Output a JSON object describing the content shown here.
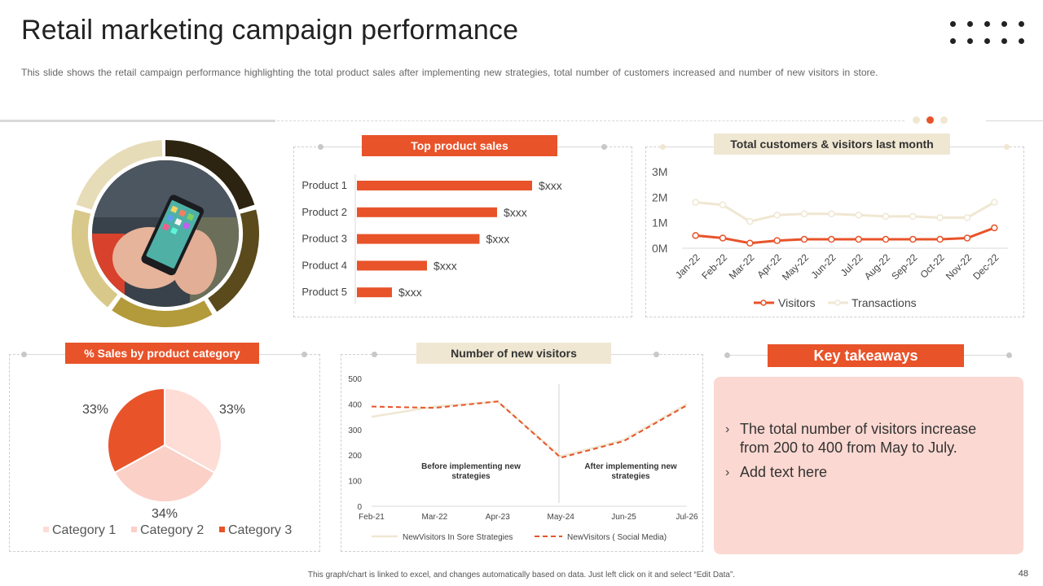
{
  "header": {
    "title": "Retail marketing campaign performance",
    "subtitle": "This slide shows the retail campaign performance  highlighting the total product sales after implementing new strategies, total number of customers increased  and number  of new visitors in store."
  },
  "colors": {
    "orange": "#e8532a",
    "beige": "#f0e7d2",
    "light_pink": "#fbd8d1",
    "dark_gold": "#5a4a1c",
    "gold": "#b39a3a",
    "pale_gold": "#e2d7a8"
  },
  "image": {
    "alt": "phone-in-hands-photo"
  },
  "chart_data": [
    {
      "id": "top-product-sales",
      "type": "bar",
      "orientation": "horizontal",
      "title": "Top product sales",
      "categories": [
        "Product 1",
        "Product 2",
        "Product 3",
        "Product 4",
        "Product 5"
      ],
      "values": [
        100,
        80,
        70,
        40,
        20
      ],
      "data_labels": [
        "$xxx",
        "$xxx",
        "$xxx",
        "$xxx",
        "$xxx"
      ],
      "xlim": [
        0,
        100
      ]
    },
    {
      "id": "customers-visitors",
      "type": "line",
      "title": "Total customers & visitors last month",
      "categories": [
        "Jan-22",
        "Feb-22",
        "Mar-22",
        "Apr-22",
        "May-22",
        "Jun-22",
        "Jul-22",
        "Aug-22",
        "Sep-22",
        "Oct-22",
        "Nov-22",
        "Dec-22"
      ],
      "series": [
        {
          "name": "Visitors",
          "values": [
            0.5,
            0.4,
            0.2,
            0.3,
            0.35,
            0.35,
            0.35,
            0.35,
            0.35,
            0.35,
            0.4,
            0.8
          ]
        },
        {
          "name": "Transactions",
          "values": [
            1.8,
            1.7,
            1.05,
            1.3,
            1.35,
            1.35,
            1.3,
            1.25,
            1.25,
            1.2,
            1.2,
            1.8
          ]
        }
      ],
      "yticks": [
        "0M",
        "1M",
        "2M",
        "3M"
      ],
      "ylim": [
        0,
        3
      ]
    },
    {
      "id": "sales-by-category",
      "type": "pie",
      "title": "% Sales by product category",
      "categories": [
        "Category 1",
        "Category 2",
        "Category 3"
      ],
      "values": [
        33,
        34,
        33
      ],
      "labels": [
        "33%",
        "34%",
        "33%"
      ]
    },
    {
      "id": "new-visitors",
      "type": "line",
      "title": "Number of new visitors",
      "categories": [
        "Feb-21",
        "Mar-22",
        "Apr-23",
        "May-24",
        "Jun-25",
        "Jul-26"
      ],
      "series": [
        {
          "name": "NewVisitors In Sore Strategies",
          "values": [
            350,
            390,
            410,
            195,
            260,
            400
          ]
        },
        {
          "name": "NewVisitors ( Social Media)",
          "values": [
            390,
            385,
            410,
            190,
            255,
            395
          ]
        }
      ],
      "yticks": [
        "0",
        "100",
        "200",
        "300",
        "400",
        "500"
      ],
      "ylim": [
        0,
        500
      ],
      "annotations": [
        "Before implementing new strategies",
        "After implementing new strategies"
      ]
    }
  ],
  "takeaways": {
    "title": "Key takeaways",
    "items": [
      "The total number of visitors increase from 200 to 400 from May to July.",
      "Add text here"
    ]
  },
  "footer": {
    "note": "This graph/chart is linked to excel, and changes automatically based on data. Just left click on it and select “Edit Data”.",
    "page_number": "48"
  }
}
